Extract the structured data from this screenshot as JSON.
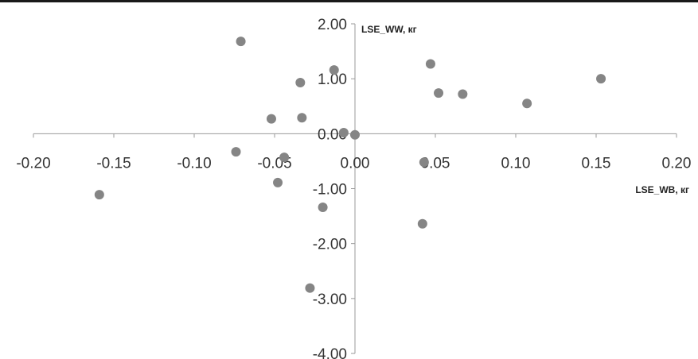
{
  "colors": {
    "point": "#858585",
    "axis": "#9a9a9a",
    "text": "#333333",
    "rule": "#1a1a1a"
  },
  "chart_data": {
    "type": "scatter",
    "title": "",
    "xlabel": "LSE_WB, кг",
    "ylabel": "LSE_WW, кг",
    "xlim": [
      -0.2,
      0.2
    ],
    "ylim": [
      -4.0,
      2.0
    ],
    "xticks": [
      "-0.20",
      "-0.15",
      "-0.10",
      "-0.05",
      "0.00",
      "0.05",
      "0.10",
      "0.15",
      "0.20"
    ],
    "yticks": [
      "2.00",
      "1.00",
      "0.00",
      "-1.00",
      "-2.00",
      "-3.00",
      "-4.00"
    ],
    "grid": false,
    "legend": "none",
    "points": [
      {
        "x": -0.071,
        "y": 1.68
      },
      {
        "x": -0.013,
        "y": 1.16
      },
      {
        "x": -0.034,
        "y": 0.93
      },
      {
        "x": -0.052,
        "y": 0.27
      },
      {
        "x": -0.033,
        "y": 0.29
      },
      {
        "x": -0.007,
        "y": 0.02
      },
      {
        "x": 0.0,
        "y": -0.02
      },
      {
        "x": 0.047,
        "y": 1.27
      },
      {
        "x": 0.052,
        "y": 0.74
      },
      {
        "x": 0.067,
        "y": 0.72
      },
      {
        "x": 0.107,
        "y": 0.55
      },
      {
        "x": 0.153,
        "y": 1.0
      },
      {
        "x": -0.159,
        "y": -1.11
      },
      {
        "x": -0.074,
        "y": -0.33
      },
      {
        "x": -0.044,
        "y": -0.43
      },
      {
        "x": -0.048,
        "y": -0.89
      },
      {
        "x": -0.02,
        "y": -1.34
      },
      {
        "x": 0.043,
        "y": -0.52
      },
      {
        "x": 0.042,
        "y": -1.64
      },
      {
        "x": -0.028,
        "y": -2.81
      }
    ]
  }
}
